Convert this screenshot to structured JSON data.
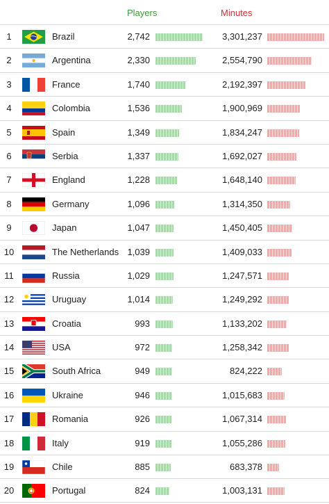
{
  "chart_data": {
    "type": "table",
    "columns": [
      "",
      "",
      "",
      "Players",
      "Minutes"
    ],
    "players_header": "Players",
    "minutes_header": "Minutes",
    "colors": {
      "players": "#3a9a3a",
      "minutes": "#d03030",
      "players_bar": "#aad9aa",
      "minutes_bar": "#f2aaaa"
    },
    "rows": [
      {
        "rank": "1",
        "country": "Brazil",
        "flag": "brazil-flag",
        "players": 2742,
        "players_label": "2,742",
        "minutes": 3301237,
        "minutes_label": "3,301,237"
      },
      {
        "rank": "2",
        "country": "Argentina",
        "flag": "argentina-flag",
        "players": 2330,
        "players_label": "2,330",
        "minutes": 2554790,
        "minutes_label": "2,554,790"
      },
      {
        "rank": "3",
        "country": "France",
        "flag": "france-flag",
        "players": 1740,
        "players_label": "1,740",
        "minutes": 2192397,
        "minutes_label": "2,192,397"
      },
      {
        "rank": "4",
        "country": "Colombia",
        "flag": "colombia-flag",
        "players": 1536,
        "players_label": "1,536",
        "minutes": 1900969,
        "minutes_label": "1,900,969"
      },
      {
        "rank": "5",
        "country": "Spain",
        "flag": "spain-flag",
        "players": 1349,
        "players_label": "1,349",
        "minutes": 1834247,
        "minutes_label": "1,834,247"
      },
      {
        "rank": "6",
        "country": "Serbia",
        "flag": "serbia-flag",
        "players": 1337,
        "players_label": "1,337",
        "minutes": 1692027,
        "minutes_label": "1,692,027"
      },
      {
        "rank": "7",
        "country": "England",
        "flag": "england-flag",
        "players": 1228,
        "players_label": "1,228",
        "minutes": 1648140,
        "minutes_label": "1,648,140"
      },
      {
        "rank": "8",
        "country": "Germany",
        "flag": "germany-flag",
        "players": 1096,
        "players_label": "1,096",
        "minutes": 1314350,
        "minutes_label": "1,314,350"
      },
      {
        "rank": "9",
        "country": "Japan",
        "flag": "japan-flag",
        "players": 1047,
        "players_label": "1,047",
        "minutes": 1450405,
        "minutes_label": "1,450,405"
      },
      {
        "rank": "10",
        "country": "The Netherlands",
        "flag": "netherlands-flag",
        "players": 1039,
        "players_label": "1,039",
        "minutes": 1409033,
        "minutes_label": "1,409,033"
      },
      {
        "rank": "11",
        "country": "Russia",
        "flag": "russia-flag",
        "players": 1029,
        "players_label": "1,029",
        "minutes": 1247571,
        "minutes_label": "1,247,571"
      },
      {
        "rank": "12",
        "country": "Uruguay",
        "flag": "uruguay-flag",
        "players": 1014,
        "players_label": "1,014",
        "minutes": 1249292,
        "minutes_label": "1,249,292"
      },
      {
        "rank": "13",
        "country": "Croatia",
        "flag": "croatia-flag",
        "players": 993,
        "players_label": "993",
        "minutes": 1133202,
        "minutes_label": "1,133,202"
      },
      {
        "rank": "14",
        "country": "USA",
        "flag": "usa-flag",
        "players": 972,
        "players_label": "972",
        "minutes": 1258342,
        "minutes_label": "1,258,342"
      },
      {
        "rank": "15",
        "country": "South Africa",
        "flag": "south-africa-flag",
        "players": 949,
        "players_label": "949",
        "minutes": 824222,
        "minutes_label": "824,222"
      },
      {
        "rank": "16",
        "country": "Ukraine",
        "flag": "ukraine-flag",
        "players": 946,
        "players_label": "946",
        "minutes": 1015683,
        "minutes_label": "1,015,683"
      },
      {
        "rank": "17",
        "country": "Romania",
        "flag": "romania-flag",
        "players": 926,
        "players_label": "926",
        "minutes": 1067314,
        "minutes_label": "1,067,314"
      },
      {
        "rank": "18",
        "country": "Italy",
        "flag": "italy-flag",
        "players": 919,
        "players_label": "919",
        "minutes": 1055286,
        "minutes_label": "1,055,286"
      },
      {
        "rank": "19",
        "country": "Chile",
        "flag": "chile-flag",
        "players": 885,
        "players_label": "885",
        "minutes": 683378,
        "minutes_label": "683,378"
      },
      {
        "rank": "20",
        "country": "Portugal",
        "flag": "portugal-flag",
        "players": 824,
        "players_label": "824",
        "minutes": 1003131,
        "minutes_label": "1,003,131"
      }
    ]
  }
}
